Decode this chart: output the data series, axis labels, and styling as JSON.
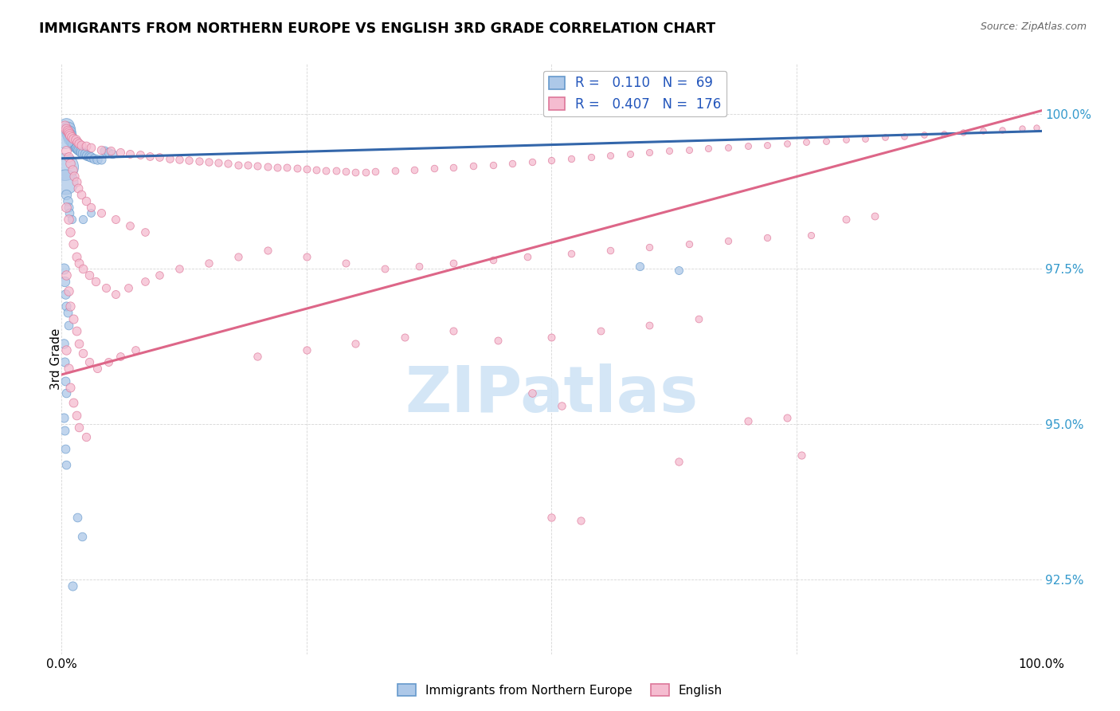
{
  "title": "IMMIGRANTS FROM NORTHERN EUROPE VS ENGLISH 3RD GRADE CORRELATION CHART",
  "source": "Source: ZipAtlas.com",
  "ylabel": "3rd Grade",
  "y_ticks": [
    92.5,
    95.0,
    97.5,
    100.0
  ],
  "y_tick_labels": [
    "92.5%",
    "95.0%",
    "97.5%",
    "100.0%"
  ],
  "x_range": [
    0.0,
    1.0
  ],
  "y_range": [
    91.3,
    100.8
  ],
  "legend_blue_r": "0.110",
  "legend_blue_n": "69",
  "legend_pink_r": "0.407",
  "legend_pink_n": "176",
  "legend_label_blue": "Immigrants from Northern Europe",
  "legend_label_pink": "English",
  "blue_color": "#adc8e8",
  "pink_color": "#f5bcd0",
  "blue_edge_color": "#6699cc",
  "pink_edge_color": "#dd7799",
  "blue_line_color": "#3366aa",
  "pink_line_color": "#dd6688",
  "watermark_text": "ZIPatlas",
  "watermark_color": "#d0e4f5",
  "blue_trend_x": [
    0.0,
    1.0
  ],
  "blue_trend_y": [
    99.28,
    99.72
  ],
  "pink_trend_x": [
    0.0,
    1.0
  ],
  "pink_trend_y": [
    95.8,
    100.05
  ],
  "blue_points": [
    [
      0.005,
      99.8,
      200
    ],
    [
      0.006,
      99.75,
      180
    ],
    [
      0.007,
      99.7,
      160
    ],
    [
      0.008,
      99.65,
      150
    ],
    [
      0.009,
      99.6,
      140
    ],
    [
      0.01,
      99.58,
      130
    ],
    [
      0.011,
      99.55,
      125
    ],
    [
      0.012,
      99.52,
      120
    ],
    [
      0.013,
      99.5,
      115
    ],
    [
      0.014,
      99.48,
      110
    ],
    [
      0.015,
      99.46,
      105
    ],
    [
      0.016,
      99.45,
      100
    ],
    [
      0.017,
      99.43,
      95
    ],
    [
      0.018,
      99.42,
      90
    ],
    [
      0.019,
      99.4,
      88
    ],
    [
      0.02,
      99.38,
      85
    ],
    [
      0.022,
      99.37,
      82
    ],
    [
      0.024,
      99.35,
      80
    ],
    [
      0.026,
      99.33,
      78
    ],
    [
      0.028,
      99.32,
      75
    ],
    [
      0.03,
      99.3,
      72
    ],
    [
      0.033,
      99.28,
      70
    ],
    [
      0.036,
      99.27,
      68
    ],
    [
      0.04,
      99.26,
      65
    ],
    [
      0.044,
      99.4,
      63
    ],
    [
      0.048,
      99.38,
      61
    ],
    [
      0.052,
      99.35,
      59
    ],
    [
      0.003,
      99.15,
      600
    ],
    [
      0.004,
      98.9,
      500
    ],
    [
      0.005,
      98.7,
      80
    ],
    [
      0.006,
      98.6,
      70
    ],
    [
      0.007,
      98.5,
      65
    ],
    [
      0.008,
      98.4,
      60
    ],
    [
      0.01,
      98.3,
      55
    ],
    [
      0.003,
      99.6,
      300
    ],
    [
      0.022,
      98.3,
      55
    ],
    [
      0.03,
      98.4,
      50
    ],
    [
      0.002,
      97.5,
      90
    ],
    [
      0.003,
      97.3,
      80
    ],
    [
      0.004,
      97.1,
      70
    ],
    [
      0.005,
      96.9,
      65
    ],
    [
      0.006,
      96.8,
      62
    ],
    [
      0.007,
      96.6,
      60
    ],
    [
      0.002,
      96.3,
      70
    ],
    [
      0.003,
      96.0,
      65
    ],
    [
      0.004,
      95.7,
      62
    ],
    [
      0.005,
      95.5,
      60
    ],
    [
      0.002,
      95.1,
      65
    ],
    [
      0.003,
      94.9,
      62
    ],
    [
      0.004,
      94.6,
      60
    ],
    [
      0.005,
      94.35,
      58
    ],
    [
      0.016,
      93.5,
      60
    ],
    [
      0.021,
      93.2,
      58
    ],
    [
      0.011,
      92.4,
      65
    ],
    [
      0.59,
      97.55,
      55
    ],
    [
      0.63,
      97.48,
      52
    ]
  ],
  "pink_points": [
    [
      0.003,
      99.8,
      90
    ],
    [
      0.005,
      99.75,
      85
    ],
    [
      0.006,
      99.72,
      82
    ],
    [
      0.007,
      99.7,
      80
    ],
    [
      0.008,
      99.68,
      78
    ],
    [
      0.009,
      99.65,
      76
    ],
    [
      0.01,
      99.62,
      74
    ],
    [
      0.012,
      99.6,
      72
    ],
    [
      0.014,
      99.58,
      70
    ],
    [
      0.016,
      99.55,
      68
    ],
    [
      0.018,
      99.52,
      66
    ],
    [
      0.02,
      99.5,
      64
    ],
    [
      0.025,
      99.48,
      62
    ],
    [
      0.03,
      99.45,
      60
    ],
    [
      0.04,
      99.42,
      58
    ],
    [
      0.05,
      99.4,
      56
    ],
    [
      0.06,
      99.38,
      54
    ],
    [
      0.07,
      99.36,
      52
    ],
    [
      0.08,
      99.34,
      51
    ],
    [
      0.09,
      99.32,
      50
    ],
    [
      0.1,
      99.3,
      49
    ],
    [
      0.11,
      99.28,
      48
    ],
    [
      0.12,
      99.26,
      47
    ],
    [
      0.13,
      99.25,
      47
    ],
    [
      0.14,
      99.24,
      46
    ],
    [
      0.15,
      99.22,
      46
    ],
    [
      0.16,
      99.21,
      45
    ],
    [
      0.17,
      99.2,
      45
    ],
    [
      0.18,
      99.18,
      44
    ],
    [
      0.19,
      99.17,
      44
    ],
    [
      0.2,
      99.16,
      43
    ],
    [
      0.21,
      99.15,
      43
    ],
    [
      0.22,
      99.14,
      43
    ],
    [
      0.23,
      99.13,
      42
    ],
    [
      0.24,
      99.12,
      42
    ],
    [
      0.25,
      99.11,
      42
    ],
    [
      0.26,
      99.1,
      41
    ],
    [
      0.27,
      99.09,
      41
    ],
    [
      0.28,
      99.08,
      41
    ],
    [
      0.29,
      99.07,
      40
    ],
    [
      0.3,
      99.06,
      40
    ],
    [
      0.31,
      99.06,
      40
    ],
    [
      0.32,
      99.07,
      39
    ],
    [
      0.34,
      99.08,
      39
    ],
    [
      0.36,
      99.1,
      39
    ],
    [
      0.38,
      99.12,
      38
    ],
    [
      0.4,
      99.14,
      38
    ],
    [
      0.42,
      99.16,
      38
    ],
    [
      0.44,
      99.18,
      37
    ],
    [
      0.46,
      99.2,
      37
    ],
    [
      0.48,
      99.22,
      37
    ],
    [
      0.5,
      99.25,
      36
    ],
    [
      0.52,
      99.28,
      36
    ],
    [
      0.54,
      99.3,
      36
    ],
    [
      0.56,
      99.33,
      35
    ],
    [
      0.58,
      99.35,
      35
    ],
    [
      0.6,
      99.38,
      35
    ],
    [
      0.62,
      99.4,
      34
    ],
    [
      0.64,
      99.42,
      34
    ],
    [
      0.66,
      99.44,
      34
    ],
    [
      0.68,
      99.46,
      33
    ],
    [
      0.7,
      99.48,
      33
    ],
    [
      0.72,
      99.5,
      33
    ],
    [
      0.74,
      99.52,
      32
    ],
    [
      0.76,
      99.54,
      32
    ],
    [
      0.78,
      99.56,
      32
    ],
    [
      0.8,
      99.58,
      31
    ],
    [
      0.82,
      99.6,
      31
    ],
    [
      0.84,
      99.62,
      31
    ],
    [
      0.86,
      99.64,
      30
    ],
    [
      0.88,
      99.66,
      30
    ],
    [
      0.9,
      99.68,
      30
    ],
    [
      0.92,
      99.7,
      29
    ],
    [
      0.94,
      99.72,
      29
    ],
    [
      0.96,
      99.74,
      29
    ],
    [
      0.98,
      99.76,
      28
    ],
    [
      0.995,
      99.78,
      28
    ],
    [
      0.005,
      99.4,
      75
    ],
    [
      0.007,
      99.3,
      72
    ],
    [
      0.009,
      99.2,
      70
    ],
    [
      0.011,
      99.1,
      68
    ],
    [
      0.013,
      99.0,
      66
    ],
    [
      0.015,
      98.9,
      64
    ],
    [
      0.017,
      98.8,
      62
    ],
    [
      0.02,
      98.7,
      60
    ],
    [
      0.025,
      98.6,
      58
    ],
    [
      0.03,
      98.5,
      56
    ],
    [
      0.04,
      98.4,
      54
    ],
    [
      0.055,
      98.3,
      52
    ],
    [
      0.07,
      98.2,
      50
    ],
    [
      0.085,
      98.1,
      49
    ],
    [
      0.005,
      98.5,
      72
    ],
    [
      0.007,
      98.3,
      70
    ],
    [
      0.009,
      98.1,
      68
    ],
    [
      0.012,
      97.9,
      66
    ],
    [
      0.015,
      97.7,
      64
    ],
    [
      0.018,
      97.6,
      62
    ],
    [
      0.022,
      97.5,
      60
    ],
    [
      0.028,
      97.4,
      58
    ],
    [
      0.035,
      97.3,
      56
    ],
    [
      0.045,
      97.2,
      54
    ],
    [
      0.055,
      97.1,
      52
    ],
    [
      0.068,
      97.2,
      50
    ],
    [
      0.085,
      97.3,
      49
    ],
    [
      0.1,
      97.4,
      48
    ],
    [
      0.12,
      97.5,
      47
    ],
    [
      0.15,
      97.6,
      46
    ],
    [
      0.18,
      97.7,
      45
    ],
    [
      0.21,
      97.8,
      44
    ],
    [
      0.25,
      97.7,
      43
    ],
    [
      0.29,
      97.6,
      42
    ],
    [
      0.33,
      97.5,
      41
    ],
    [
      0.365,
      97.55,
      40
    ],
    [
      0.4,
      97.6,
      40
    ],
    [
      0.44,
      97.65,
      39
    ],
    [
      0.475,
      97.7,
      39
    ],
    [
      0.52,
      97.75,
      38
    ],
    [
      0.56,
      97.8,
      38
    ],
    [
      0.6,
      97.85,
      37
    ],
    [
      0.64,
      97.9,
      37
    ],
    [
      0.68,
      97.95,
      36
    ],
    [
      0.72,
      98.0,
      36
    ],
    [
      0.765,
      98.05,
      35
    ],
    [
      0.005,
      97.4,
      70
    ],
    [
      0.007,
      97.15,
      68
    ],
    [
      0.009,
      96.9,
      66
    ],
    [
      0.012,
      96.7,
      64
    ],
    [
      0.015,
      96.5,
      62
    ],
    [
      0.018,
      96.3,
      60
    ],
    [
      0.022,
      96.15,
      58
    ],
    [
      0.028,
      96.0,
      56
    ],
    [
      0.036,
      95.9,
      54
    ],
    [
      0.048,
      96.0,
      52
    ],
    [
      0.06,
      96.1,
      50
    ],
    [
      0.075,
      96.2,
      49
    ],
    [
      0.2,
      96.1,
      46
    ],
    [
      0.25,
      96.2,
      45
    ],
    [
      0.3,
      96.3,
      44
    ],
    [
      0.35,
      96.4,
      43
    ],
    [
      0.4,
      96.5,
      43
    ],
    [
      0.445,
      96.35,
      42
    ],
    [
      0.5,
      96.4,
      42
    ],
    [
      0.55,
      96.5,
      41
    ],
    [
      0.6,
      96.6,
      41
    ],
    [
      0.65,
      96.7,
      40
    ],
    [
      0.005,
      96.2,
      68
    ],
    [
      0.007,
      95.9,
      66
    ],
    [
      0.009,
      95.6,
      64
    ],
    [
      0.012,
      95.35,
      62
    ],
    [
      0.015,
      95.15,
      60
    ],
    [
      0.018,
      94.95,
      58
    ],
    [
      0.025,
      94.8,
      56
    ],
    [
      0.48,
      95.5,
      48
    ],
    [
      0.51,
      95.3,
      47
    ],
    [
      0.5,
      93.5,
      46
    ],
    [
      0.53,
      93.45,
      45
    ],
    [
      0.7,
      95.05,
      44
    ],
    [
      0.74,
      95.1,
      43
    ],
    [
      0.63,
      94.4,
      46
    ],
    [
      0.755,
      94.5,
      44
    ],
    [
      0.8,
      98.3,
      42
    ],
    [
      0.83,
      98.35,
      41
    ]
  ]
}
